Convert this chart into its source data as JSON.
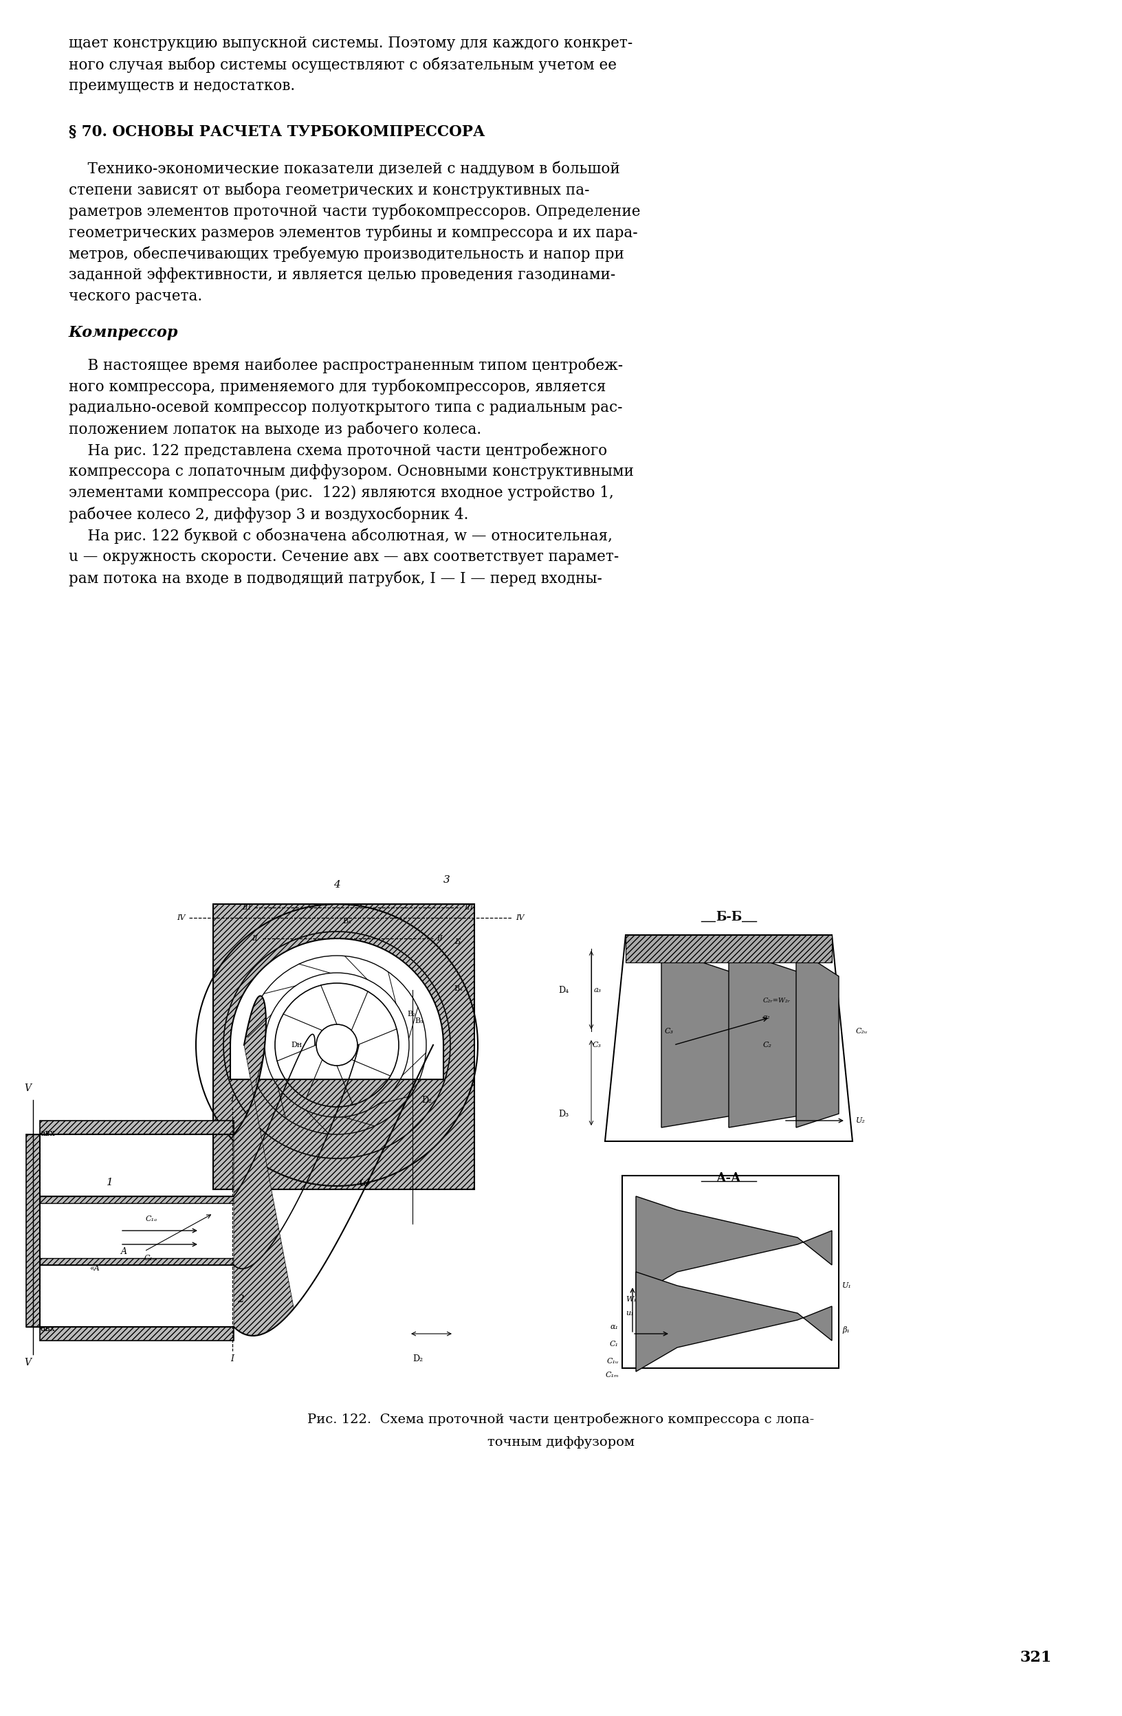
{
  "background_color": "#ffffff",
  "page_number": "321",
  "top_lines": [
    "щает конструкцию выпускной системы. Поэтому для каждого конкрет-",
    "ного случая выбор системы осуществляют с обязательным учетом ее",
    "преимуществ и недостатков."
  ],
  "section_title": "§ 70. ОСНОВЫ РАСЧЕТА ТУРБОКОМПРЕССОРА",
  "para1": [
    "    Технико-экономические показатели дизелей с наддувом в большой",
    "степени зависят от выбора геометрических и конструктивных па-",
    "раметров элементов проточной части турбокомпрессоров. Определение",
    "геометрических размеров элементов турбины и компрессора и их пара-",
    "метров, обеспечивающих требуемую производительность и напор при",
    "заданной эффективности, и является целью проведения газодинами-",
    "ческого расчета."
  ],
  "subsection": "Компрессор",
  "para2": [
    "    В настоящее время наиболее распространенным типом центробеж-",
    "ного компрессора, применяемого для турбокомпрессоров, является",
    "радиально-осевой компрессор полуоткрытого типа с радиальным рас-",
    "положением лопаток на выходе из рабочего колеса.",
    "    На рис. 122 представлена схема проточной части центробежного",
    "компрессора с лопаточным диффузором. Основными конструктивными",
    "элементами компрессора (рис.  122) являются входное устройство 1,",
    "рабочее колесо 2, диффузор 3 и воздухосборник 4.",
    "    На рис. 122 буквой c обозначена абсолютная, w — относительная,",
    "u — окружность скорости. Сечение aвх — aвх соответствует парамет-",
    "рам потока на входе в подводящий патрубок, I — I — перед входны-"
  ],
  "caption_line1": "Рис. 122.  Схема проточной части центробежного компрессора с лопа-",
  "caption_line2": "точным диффузором"
}
